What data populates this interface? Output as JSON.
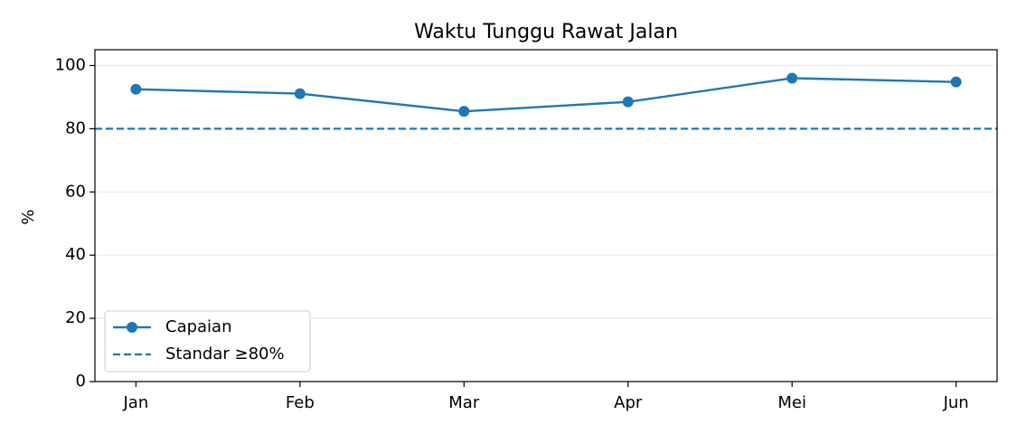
{
  "chart_data": {
    "type": "line",
    "title": "Waktu Tunggu Rawat Jalan",
    "y_label": "%",
    "categories": [
      "Jan",
      "Feb",
      "Mar",
      "Apr",
      "Mei",
      "Jun"
    ],
    "series": [
      {
        "name": "Capaian",
        "color": "#1f77b4",
        "values": [
          92.5,
          91.1,
          85.5,
          88.5,
          96.0,
          94.8
        ]
      }
    ],
    "reference_line": {
      "name": "Standar ≥80%",
      "value": 80,
      "color": "#1f77b4",
      "style": "dashed"
    },
    "ylim": [
      0,
      105
    ],
    "yticks": [
      0,
      20,
      40,
      60,
      80,
      100
    ],
    "grid": true,
    "legend": "lower left"
  }
}
